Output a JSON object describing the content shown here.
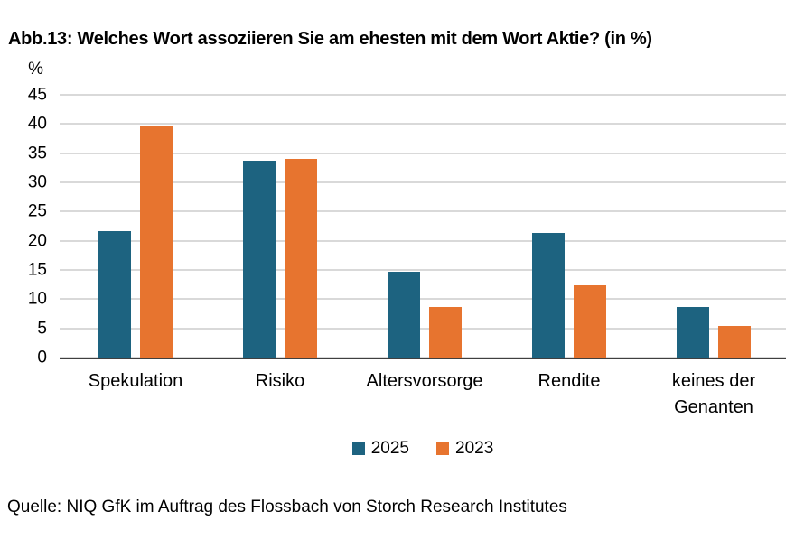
{
  "title": "Abb.13: Welches Wort assoziieren Sie am ehesten mit dem Wort Aktie? (in %)",
  "source": "Quelle: NIQ GfK im Auftrag des Flossbach von Storch Research Institutes",
  "chart_data": {
    "type": "bar",
    "grouped": true,
    "title": "Abb.13: Welches Wort assoziieren Sie am ehesten mit dem Wort Aktie? (in %)",
    "categories": [
      "Spekulation",
      "Risiko",
      "Altersvorsorge",
      "Rendite",
      "keines der Genanten"
    ],
    "series": [
      {
        "name": "2025",
        "color": "#1D6380",
        "values": [
          21.7,
          33.7,
          14.7,
          21.4,
          8.6
        ]
      },
      {
        "name": "2023",
        "color": "#E7742F",
        "values": [
          39.7,
          34.1,
          8.6,
          12.3,
          5.4
        ]
      }
    ],
    "xlabel": "",
    "ylabel": "%",
    "ylim": [
      0,
      45
    ],
    "ytick_step": 5,
    "grid": true,
    "legend_position": "bottom-center",
    "colors": {
      "gridline": "#d9d9d9",
      "axis_line": "#3f3f3f",
      "text": "#000000"
    }
  }
}
